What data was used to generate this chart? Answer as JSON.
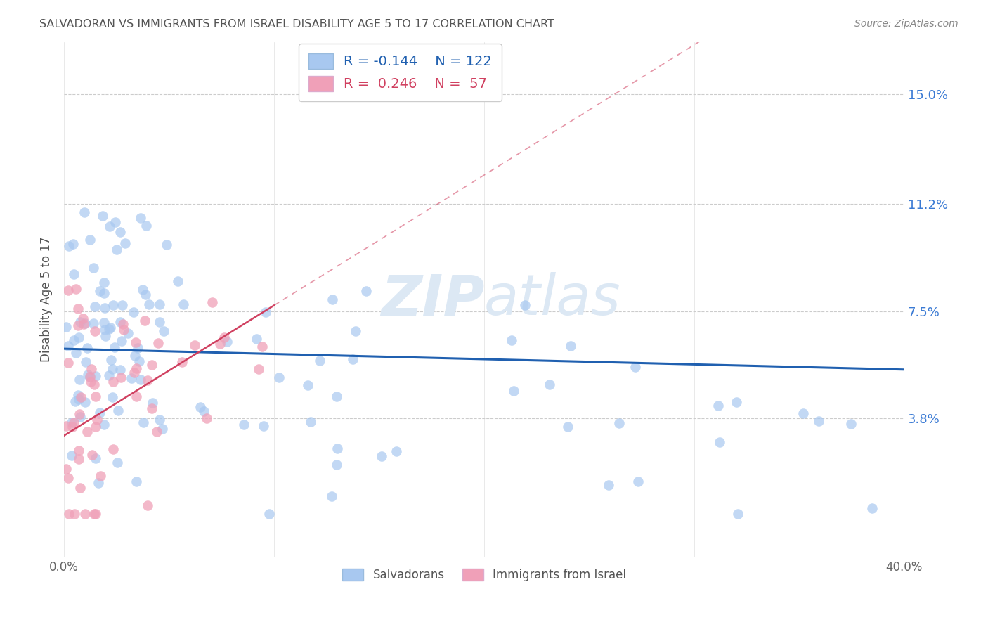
{
  "title": "SALVADORAN VS IMMIGRANTS FROM ISRAEL DISABILITY AGE 5 TO 17 CORRELATION CHART",
  "source": "Source: ZipAtlas.com",
  "ylabel": "Disability Age 5 to 17",
  "yticks": [
    "3.8%",
    "7.5%",
    "11.2%",
    "15.0%"
  ],
  "ytick_vals": [
    0.038,
    0.075,
    0.112,
    0.15
  ],
  "xlim": [
    0.0,
    0.4
  ],
  "ylim": [
    -0.01,
    0.168
  ],
  "legend_blue_R": "-0.144",
  "legend_blue_N": "122",
  "legend_pink_R": "0.246",
  "legend_pink_N": "57",
  "blue_color": "#a8c8f0",
  "pink_color": "#f0a0b8",
  "trendline_blue_color": "#2060b0",
  "trendline_pink_color": "#d04060",
  "watermark_color": "#dce8f4",
  "xtick_left": "0.0%",
  "xtick_right": "40.0%"
}
